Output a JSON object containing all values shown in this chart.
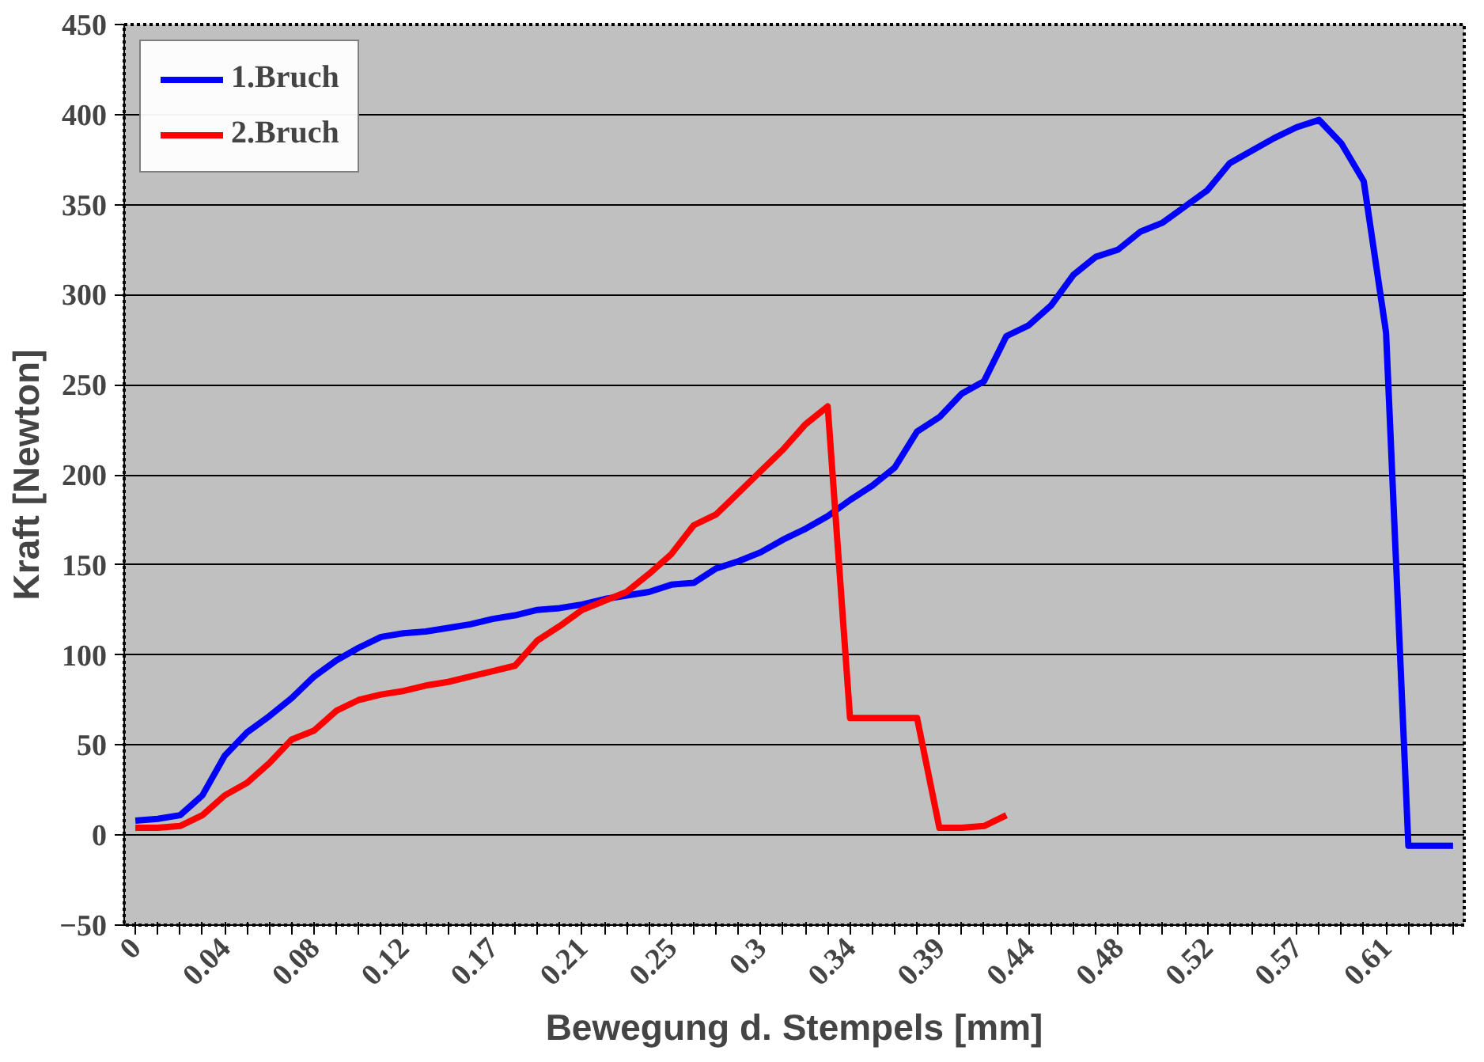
{
  "chart_data": {
    "type": "line",
    "xlabel": "Bewegung d. Stempels [mm]",
    "ylabel": "Kraft [Newton]",
    "categories": [
      "0",
      null,
      null,
      null,
      "0.04",
      null,
      null,
      null,
      "0.08",
      null,
      null,
      null,
      "0.12",
      null,
      null,
      null,
      "0.17",
      null,
      null,
      null,
      "0.21",
      null,
      null,
      null,
      "0.25",
      null,
      null,
      null,
      "0.3",
      null,
      null,
      null,
      "0.34",
      null,
      null,
      null,
      "0.39",
      null,
      null,
      null,
      "0.44",
      null,
      null,
      null,
      "0.48",
      null,
      null,
      null,
      "0.52",
      null,
      null,
      null,
      "0.57",
      null,
      null,
      null,
      "0.61",
      null,
      null,
      null
    ],
    "ylim": [
      -50,
      450
    ],
    "yticks": [
      -50,
      0,
      50,
      100,
      150,
      200,
      250,
      300,
      350,
      400,
      450
    ],
    "grid": "y",
    "legend": "top left",
    "marker": "none",
    "line_style": "solid",
    "series": [
      {
        "name": "1.Bruch",
        "color": "#0000ff",
        "values": [
          8,
          9,
          11,
          22,
          44,
          57,
          66,
          76,
          88,
          97,
          104,
          110,
          112,
          113,
          115,
          117,
          120,
          122,
          125,
          126,
          128,
          131,
          133,
          135,
          139,
          140,
          148,
          152,
          157,
          164,
          170,
          177,
          186,
          194,
          204,
          224,
          232,
          245,
          252,
          277,
          283,
          294,
          311,
          321,
          325,
          335,
          340,
          349,
          358,
          373,
          380,
          387,
          393,
          397,
          384,
          363,
          279,
          -6,
          -6,
          -6
        ]
      },
      {
        "name": "2.Bruch",
        "color": "#ff0000",
        "values": [
          4,
          4,
          5,
          11,
          22,
          29,
          40,
          53,
          58,
          69,
          75,
          78,
          80,
          83,
          85,
          88,
          91,
          94,
          108,
          116,
          125,
          130,
          135,
          145,
          156,
          172,
          178,
          190,
          202,
          214,
          228,
          238,
          65,
          65,
          65,
          65,
          4,
          4,
          5,
          11,
          null,
          null,
          null,
          null,
          null,
          null,
          null,
          null,
          null,
          null,
          null,
          null,
          null,
          null,
          null,
          null,
          null,
          null,
          null,
          null
        ]
      }
    ]
  }
}
